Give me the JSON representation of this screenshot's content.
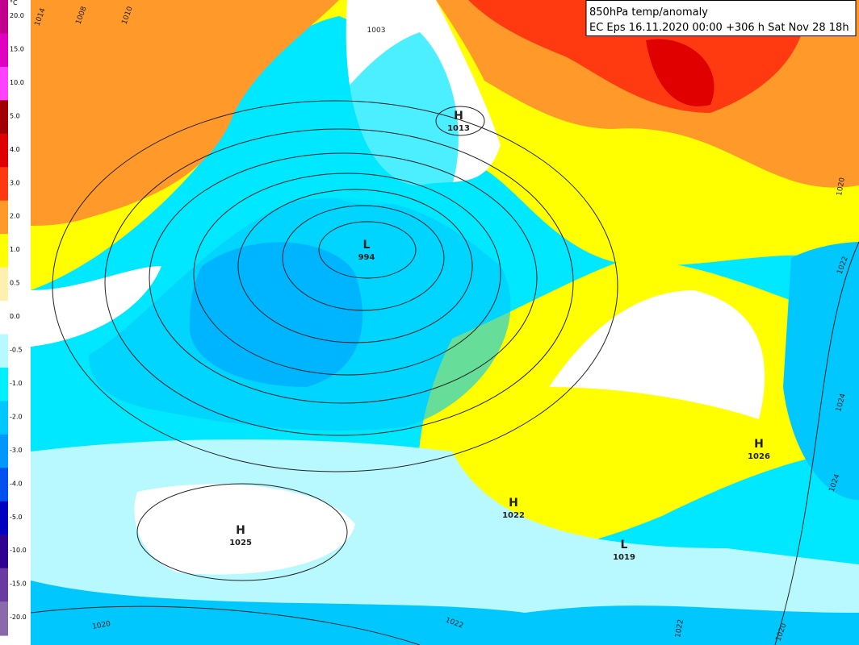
{
  "header": {
    "line1": "850hPa temp/anomaly",
    "line2": "EC Eps 16.11.2020 00:00 +306 h Sat Nov 28 18h"
  },
  "legend": {
    "unit": "°C",
    "labels": [
      "20.0",
      "15.0",
      "10.0",
      "5.0",
      "4.0",
      "3.0",
      "2.0",
      "1.0",
      "0.5",
      "0.0",
      "-0.5",
      "-1.0",
      "-2.0",
      "-3.0",
      "-4.0",
      "-5.0",
      "-10.0",
      "-15.0",
      "-20.0"
    ],
    "colors": [
      "#c0008c",
      "#e000c0",
      "#ff40ff",
      "#a00000",
      "#e00000",
      "#ff3a10",
      "#ff9a2a",
      "#ffff00",
      "#fff0b0",
      "#ffffff",
      "#b8f8ff",
      "#00f0ff",
      "#00c8ff",
      "#0098ff",
      "#0050f0",
      "#0000c0",
      "#300090",
      "#6a3aa0",
      "#8a6aaa"
    ]
  },
  "centers": [
    {
      "letter": "H",
      "value": "1013"
    },
    {
      "letter": "L",
      "value": "994"
    },
    {
      "letter": "H",
      "value": "1025"
    },
    {
      "letter": "H",
      "value": "1022"
    },
    {
      "letter": "L",
      "value": "1019"
    },
    {
      "letter": "H",
      "value": "1026"
    }
  ],
  "isobar_labels": [
    "1003",
    "1008",
    "1010",
    "1014",
    "1020",
    "1022",
    "1024",
    "1020",
    "1022",
    "1024",
    "1022",
    "1020"
  ]
}
